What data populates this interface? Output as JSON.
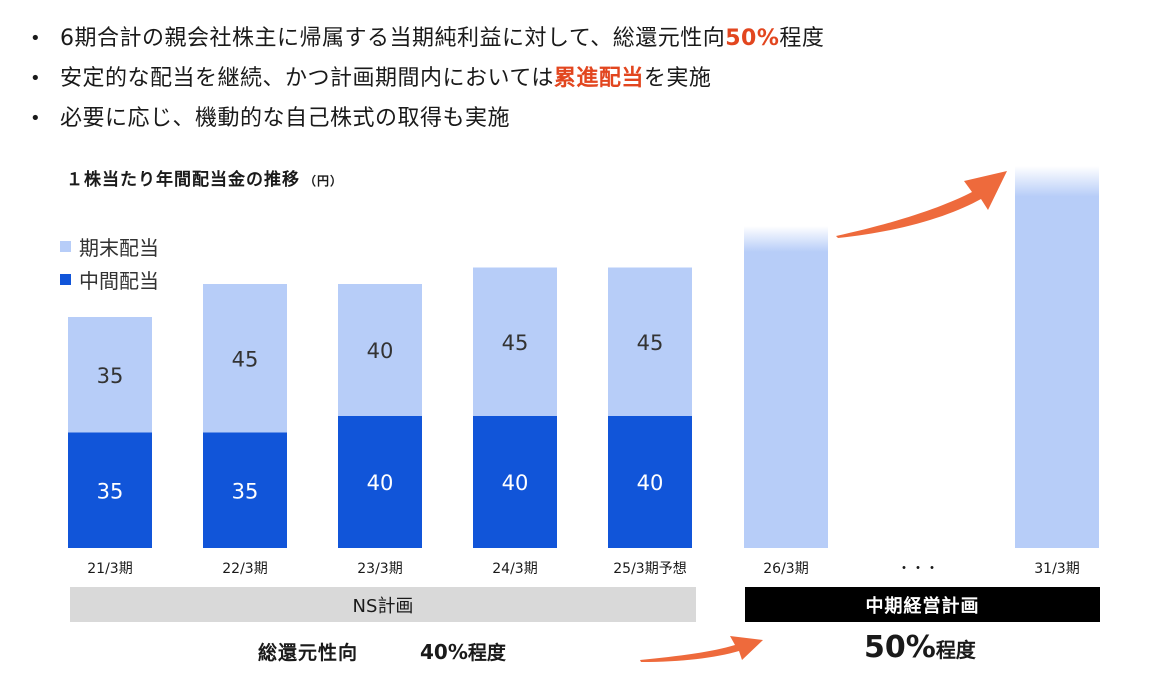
{
  "bullets": [
    {
      "pre": "6期合計の親会社株主に帰属する当期純利益に対して、総還元性向",
      "hl": "50%",
      "post": "程度"
    },
    {
      "pre": "安定的な配当を継続、かつ計画期間内においては",
      "hl": "累進配当",
      "post": "を実施"
    },
    {
      "pre": "必要に応じ、機動的な自己株式の取得も実施",
      "hl": "",
      "post": ""
    }
  ],
  "bullet_marker": "•",
  "chart_data": {
    "type": "bar",
    "title": "１株当たり年間配当金の推移",
    "unit": "（円）",
    "categories": [
      "21/3期",
      "22/3期",
      "23/3期",
      "24/3期",
      "25/3期予想",
      "26/3期",
      "・・・",
      "31/3期"
    ],
    "series": [
      {
        "name": "中間配当",
        "color": "#1155d9",
        "values": [
          35,
          35,
          40,
          40,
          40,
          null,
          null,
          null
        ]
      },
      {
        "name": "期末配当",
        "color": "#b7cdf8",
        "values": [
          35,
          45,
          40,
          45,
          45,
          null,
          null,
          null
        ]
      }
    ],
    "future_bars": [
      "26/3期",
      "31/3期"
    ]
  },
  "legend": {
    "items": [
      {
        "label": "期末配当",
        "color": "#b7cdf8"
      },
      {
        "label": "中間配当",
        "color": "#1155d9"
      }
    ]
  },
  "segments": {
    "ns_label": "NS計画",
    "plan_label": "中期経営計画"
  },
  "payout": {
    "label": "総還元性向",
    "old_value": "40%",
    "old_suffix": "程度",
    "new_value": "50%",
    "new_suffix": "程度"
  },
  "colors": {
    "accent": "#e2461f",
    "arrow": "#ee6a3c",
    "interim": "#1155d9",
    "year_end": "#b7cdf8"
  }
}
